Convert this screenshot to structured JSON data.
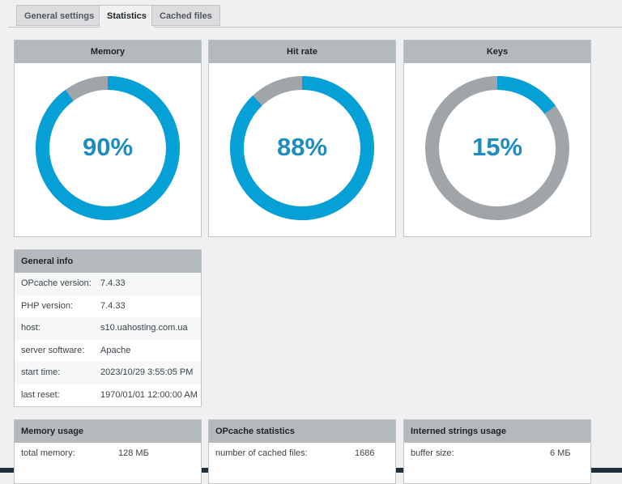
{
  "tabs": [
    {
      "label": "General settings",
      "active": false
    },
    {
      "label": "Statistics",
      "active": true
    },
    {
      "label": "Cached files",
      "active": false
    }
  ],
  "gauges": [
    {
      "title": "Memory",
      "value": 90,
      "label": "90%"
    },
    {
      "title": "Hit rate",
      "value": 88,
      "label": "88%"
    },
    {
      "title": "Keys",
      "value": 15,
      "label": "15%"
    }
  ],
  "general_info": {
    "title": "General info",
    "rows": [
      [
        "OPcache version:",
        "7.4.33"
      ],
      [
        "PHP version:",
        "7.4.33"
      ],
      [
        "host:",
        "s10.uahosting.com.ua"
      ],
      [
        "server software:",
        "Apache"
      ],
      [
        "start time:",
        "2023/10/29 3:55:05 PM"
      ],
      [
        "last reset:",
        "1970/01/01 12:00:00 AM"
      ]
    ]
  },
  "panels": [
    {
      "title": "Memory usage",
      "rows": [
        [
          "total memory:",
          "128 МБ"
        ]
      ]
    },
    {
      "title": "OPcache statistics",
      "rows": [
        [
          "number of cached files:",
          "1686"
        ]
      ]
    },
    {
      "title": "Interned strings usage",
      "rows": [
        [
          "buffer size:",
          "6 МБ"
        ]
      ]
    }
  ]
}
